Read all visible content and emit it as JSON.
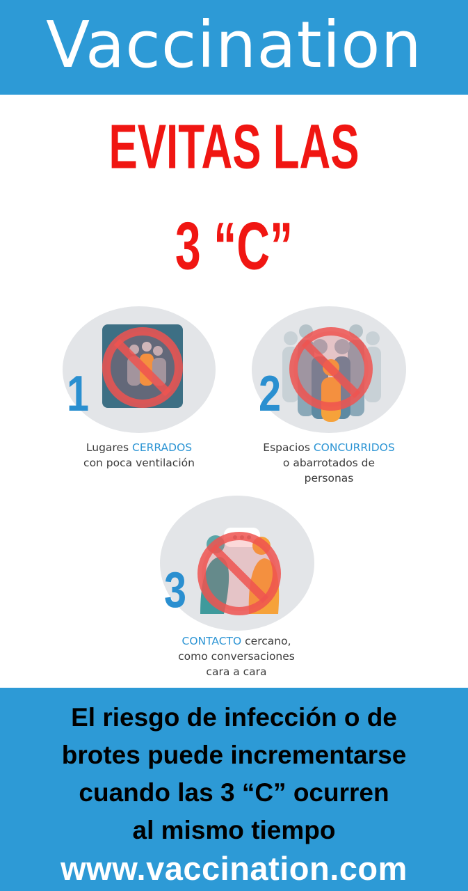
{
  "header": {
    "title": "Vaccination"
  },
  "headline": {
    "line1": "EVITAS LAS",
    "line2": "3 “C”"
  },
  "items": [
    {
      "number": "1",
      "caption_line1_pre": "Lugares ",
      "caption_line1_hl": "CERRADOS",
      "caption_line2": "con poca ventilación",
      "icon": "closed-room-icon"
    },
    {
      "number": "2",
      "caption_line1_pre": "Espacios ",
      "caption_line1_hl": "CONCURRIDOS",
      "caption_line2": "o abarrotados de",
      "caption_line3": "personas",
      "icon": "crowd-icon"
    },
    {
      "number": "3",
      "caption_line1_hl": "CONTACTO",
      "caption_line1_post": " cercano,",
      "caption_line2": "como conversaciones",
      "caption_line3": "cara a cara",
      "icon": "close-contact-icon"
    }
  ],
  "footer": {
    "message_lines": [
      "El riesgo de infección o de",
      "brotes puede incrementarse",
      "cuando las 3 “C” ocurren",
      "al mismo tiempo"
    ],
    "url": "www.vaccination.com"
  },
  "colors": {
    "brand_blue": "#2d9ad6",
    "headline_red": "#f01612",
    "prohibition_red": "#ef5350",
    "number_blue": "#2a8fd0"
  }
}
